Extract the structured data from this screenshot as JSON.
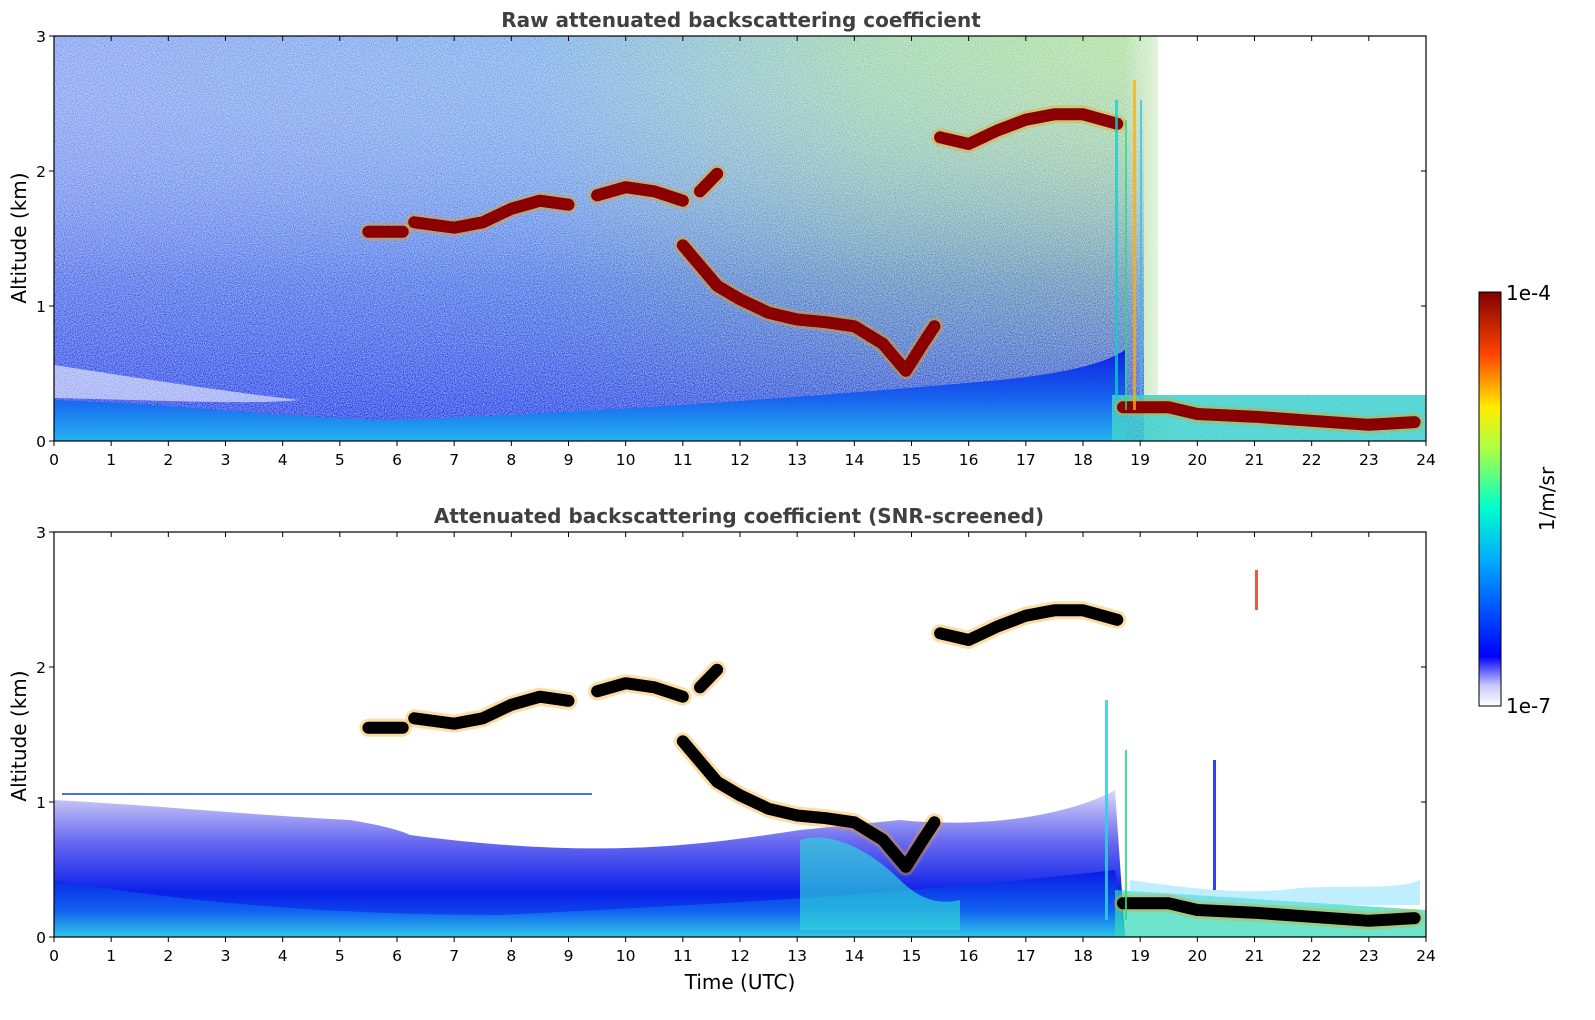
{
  "chart_data": [
    {
      "type": "heatmap",
      "title": "Raw attenuated backscattering coefficient",
      "xlabel": "",
      "ylabel": "Altitude (km)",
      "xlim": [
        0,
        24
      ],
      "ylim": [
        0,
        3
      ],
      "xticks": [
        "0",
        "1",
        "2",
        "3",
        "4",
        "5",
        "6",
        "7",
        "8",
        "9",
        "10",
        "11",
        "12",
        "13",
        "14",
        "15",
        "16",
        "17",
        "18",
        "19",
        "20",
        "21",
        "22",
        "23",
        "24"
      ],
      "yticks": [
        "0",
        "1",
        "2",
        "3"
      ],
      "screened": false,
      "layers": [
        {
          "name": "cloud-layer-1",
          "points": [
            [
              5.5,
              1.55
            ],
            [
              6.1,
              1.55
            ]
          ]
        },
        {
          "name": "cloud-layer-2",
          "points": [
            [
              6.3,
              1.62
            ],
            [
              7.0,
              1.58
            ],
            [
              7.5,
              1.62
            ],
            [
              8.0,
              1.72
            ],
            [
              8.5,
              1.78
            ],
            [
              9.0,
              1.75
            ]
          ]
        },
        {
          "name": "cloud-layer-3",
          "points": [
            [
              9.5,
              1.82
            ],
            [
              10.0,
              1.88
            ],
            [
              10.5,
              1.85
            ],
            [
              11.0,
              1.78
            ]
          ]
        },
        {
          "name": "cloud-layer-4",
          "points": [
            [
              11.3,
              1.85
            ],
            [
              11.6,
              1.98
            ]
          ]
        },
        {
          "name": "cloud-layer-5",
          "points": [
            [
              11.0,
              1.45
            ],
            [
              11.6,
              1.15
            ],
            [
              12.0,
              1.05
            ],
            [
              12.5,
              0.95
            ],
            [
              13.0,
              0.9
            ],
            [
              13.5,
              0.88
            ],
            [
              14.0,
              0.85
            ],
            [
              14.5,
              0.72
            ],
            [
              14.9,
              0.52
            ],
            [
              15.2,
              0.72
            ],
            [
              15.4,
              0.85
            ]
          ]
        },
        {
          "name": "cloud-layer-6",
          "points": [
            [
              15.5,
              2.25
            ],
            [
              16.0,
              2.2
            ],
            [
              16.5,
              2.3
            ],
            [
              17.0,
              2.38
            ],
            [
              17.5,
              2.42
            ],
            [
              18.0,
              2.42
            ],
            [
              18.6,
              2.35
            ]
          ]
        },
        {
          "name": "cloud-layer-7",
          "points": [
            [
              18.7,
              0.25
            ],
            [
              19.5,
              0.25
            ],
            [
              20.0,
              0.2
            ],
            [
              21.0,
              0.18
            ],
            [
              22.0,
              0.15
            ],
            [
              23.0,
              0.12
            ],
            [
              23.8,
              0.14
            ]
          ]
        }
      ]
    },
    {
      "type": "heatmap",
      "title": "Attenuated backscattering coefficient (SNR-screened)",
      "xlabel": "Time (UTC)",
      "ylabel": "Altitude (km)",
      "xlim": [
        0,
        24
      ],
      "ylim": [
        0,
        3
      ],
      "xticks": [
        "0",
        "1",
        "2",
        "3",
        "4",
        "5",
        "6",
        "7",
        "8",
        "9",
        "10",
        "11",
        "12",
        "13",
        "14",
        "15",
        "16",
        "17",
        "18",
        "19",
        "20",
        "21",
        "22",
        "23",
        "24"
      ],
      "yticks": [
        "0",
        "1",
        "2",
        "3"
      ],
      "screened": true,
      "layers": [
        {
          "name": "cloud-layer-1",
          "points": [
            [
              5.5,
              1.55
            ],
            [
              6.1,
              1.55
            ]
          ]
        },
        {
          "name": "cloud-layer-2",
          "points": [
            [
              6.3,
              1.62
            ],
            [
              7.0,
              1.58
            ],
            [
              7.5,
              1.62
            ],
            [
              8.0,
              1.72
            ],
            [
              8.5,
              1.78
            ],
            [
              9.0,
              1.75
            ]
          ]
        },
        {
          "name": "cloud-layer-3",
          "points": [
            [
              9.5,
              1.82
            ],
            [
              10.0,
              1.88
            ],
            [
              10.5,
              1.85
            ],
            [
              11.0,
              1.78
            ]
          ]
        },
        {
          "name": "cloud-layer-4",
          "points": [
            [
              11.3,
              1.85
            ],
            [
              11.6,
              1.98
            ]
          ]
        },
        {
          "name": "cloud-layer-5",
          "points": [
            [
              11.0,
              1.45
            ],
            [
              11.6,
              1.15
            ],
            [
              12.0,
              1.05
            ],
            [
              12.5,
              0.95
            ],
            [
              13.0,
              0.9
            ],
            [
              13.5,
              0.88
            ],
            [
              14.0,
              0.85
            ],
            [
              14.5,
              0.72
            ],
            [
              14.9,
              0.52
            ],
            [
              15.2,
              0.72
            ],
            [
              15.4,
              0.85
            ]
          ]
        },
        {
          "name": "cloud-layer-6",
          "points": [
            [
              15.5,
              2.25
            ],
            [
              16.0,
              2.2
            ],
            [
              16.5,
              2.3
            ],
            [
              17.0,
              2.38
            ],
            [
              17.5,
              2.42
            ],
            [
              18.0,
              2.42
            ],
            [
              18.6,
              2.35
            ]
          ]
        },
        {
          "name": "cloud-layer-7",
          "points": [
            [
              18.7,
              0.25
            ],
            [
              19.5,
              0.25
            ],
            [
              20.0,
              0.2
            ],
            [
              21.0,
              0.18
            ],
            [
              22.0,
              0.15
            ],
            [
              23.0,
              0.12
            ],
            [
              23.8,
              0.14
            ]
          ]
        }
      ]
    }
  ],
  "colorbar": {
    "label": "1/m/sr",
    "max_label": "1e-4",
    "min_label": "1e-7",
    "range": [
      1e-07,
      0.0001
    ],
    "scale": "log",
    "colormap": "jet"
  },
  "colors": {
    "layer_raw": "#8b0000",
    "layer_screened": "#000000",
    "background": "#ffffff"
  }
}
